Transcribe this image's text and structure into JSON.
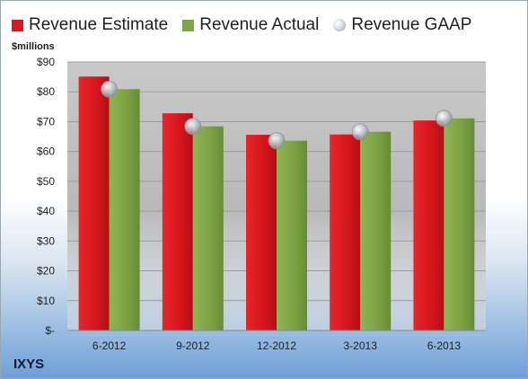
{
  "legend": {
    "estimate": "Revenue Estimate",
    "actual": "Revenue Actual",
    "gaap": "Revenue GAAP"
  },
  "unit_label": "$millions",
  "company": "IXYS",
  "colors": {
    "estimate": "#d9181e",
    "actual": "#7da445",
    "gaap": "#c6ccd4"
  },
  "chart_data": {
    "type": "bar",
    "categories": [
      "6-2012",
      "9-2012",
      "12-2012",
      "3-2013",
      "6-2013"
    ],
    "series": [
      {
        "name": "Revenue Estimate",
        "values": [
          85.1,
          72.8,
          65.6,
          65.7,
          70.4
        ]
      },
      {
        "name": "Revenue Actual",
        "values": [
          80.9,
          68.4,
          63.6,
          66.6,
          71.1
        ]
      },
      {
        "name": "Revenue GAAP",
        "type": "scatter",
        "values": [
          80.9,
          68.4,
          63.6,
          66.6,
          71.1
        ]
      }
    ],
    "yticks": [
      "$-",
      "$10",
      "$20",
      "$30",
      "$40",
      "$50",
      "$60",
      "$70",
      "$80",
      "$90"
    ],
    "ylim": [
      0,
      90
    ],
    "ylabel": "$millions",
    "grid": true,
    "legend_position": "top"
  }
}
